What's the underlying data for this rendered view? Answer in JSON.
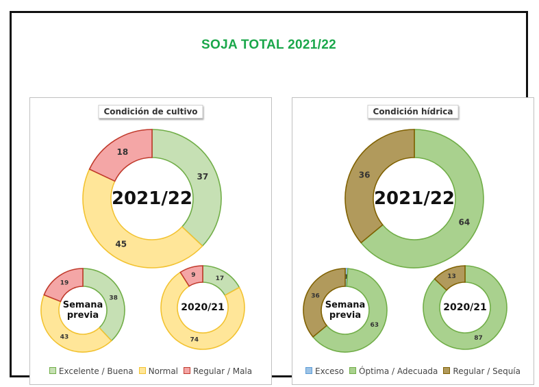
{
  "title": "SOJA TOTAL 2021/22",
  "chart_data": [
    {
      "type": "donut",
      "title": "Condición  de cultivo",
      "legend_position": "bottom",
      "categories": [
        "Excelente / Buena",
        "Normal",
        "Regular / Mala"
      ],
      "colors": {
        "fill": [
          "#c6e0b4",
          "#ffe699",
          "#f4a6a6"
        ],
        "stroke": [
          "#70ad47",
          "#f2c230",
          "#c0392b"
        ]
      },
      "series": [
        {
          "name": "2021/22",
          "values": [
            37,
            45,
            18
          ]
        },
        {
          "name": "Semana previa",
          "values": [
            38,
            43,
            19
          ]
        },
        {
          "name": "2020/21",
          "values": [
            17,
            74,
            9
          ]
        }
      ]
    },
    {
      "type": "donut",
      "title": "Condición  hídrica",
      "legend_position": "bottom",
      "categories": [
        "Exceso",
        "Óptima / Adecuada",
        "Regular / Sequía"
      ],
      "colors": {
        "fill": [
          "#9dc3e6",
          "#a9d18e",
          "#b19a5c"
        ],
        "stroke": [
          "#5b9bd5",
          "#70ad47",
          "#7f6000"
        ]
      },
      "series": [
        {
          "name": "2021/22",
          "values": [
            0,
            64,
            36
          ]
        },
        {
          "name": "Semana previa",
          "values": [
            1,
            63,
            36
          ]
        },
        {
          "name": "2020/21",
          "values": [
            0,
            87,
            13
          ]
        }
      ]
    }
  ]
}
